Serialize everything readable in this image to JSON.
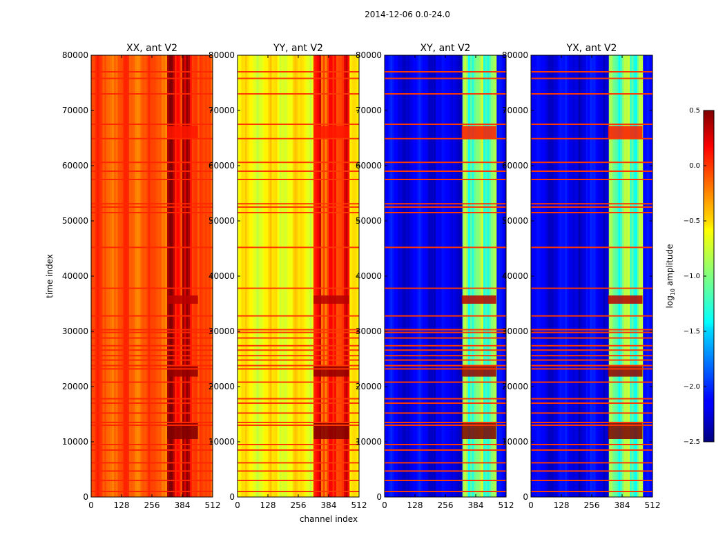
{
  "figure": {
    "suptitle": "2014-12-06 0.0-24.0",
    "xlabel": "channel index",
    "ylabel": "time index"
  },
  "chart_data": {
    "type": "heatmap",
    "x": {
      "label": "channel index",
      "range": [
        0,
        512
      ],
      "ticks": [
        0,
        128,
        256,
        384,
        512
      ],
      "tick_labels": [
        "0",
        "128",
        "256",
        "384",
        "512"
      ]
    },
    "y": {
      "label": "time index",
      "range": [
        0,
        80000
      ],
      "ticks": [
        0,
        10000,
        20000,
        30000,
        40000,
        50000,
        60000,
        70000,
        80000
      ],
      "tick_labels": [
        "0",
        "10000",
        "20000",
        "30000",
        "40000",
        "50000",
        "60000",
        "70000",
        "80000"
      ]
    },
    "panels": [
      {
        "title": "XX, ant V2",
        "base_level": -0.1,
        "hot_level": 0.4,
        "flag_level": 0.05,
        "hot_span": [
          320,
          450
        ]
      },
      {
        "title": "YY, ant V2",
        "base_level": -0.6,
        "hot_level": 0.2,
        "flag_level": 0.0,
        "hot_span": [
          320,
          470
        ]
      },
      {
        "title": "XY, ant V2",
        "base_level": -2.2,
        "hot_level": -0.9,
        "flag_level": 0.0,
        "hot_span": [
          325,
          470
        ]
      },
      {
        "title": "YX, ant V2",
        "base_level": -2.2,
        "hot_level": -0.9,
        "flag_level": 0.0,
        "hot_span": [
          325,
          470
        ]
      }
    ],
    "colorbar": {
      "label": "log10 amplitude",
      "label_main": "log",
      "label_sub": "10",
      "label_rest": " amplitude",
      "range": [
        -2.5,
        0.5
      ],
      "ticks": [
        0.5,
        0.0,
        -0.5,
        -1.0,
        -1.5,
        -2.0,
        -2.5
      ],
      "tick_labels": [
        "0.5",
        "0.0",
        "−0.5",
        "−1.0",
        "−1.5",
        "−2.0",
        "−2.5"
      ],
      "colormap": "jet"
    },
    "flagged_time_rows": [
      1000,
      3000,
      4700,
      6200,
      8500,
      9500,
      13000,
      13500,
      15200,
      17000,
      17800,
      20800,
      23200,
      23800,
      24800,
      25600,
      26600,
      27400,
      28800,
      29800,
      30300,
      32800,
      37800,
      45200,
      51500,
      52500,
      53100,
      57500,
      59000,
      60600,
      64900,
      67500,
      73000,
      75800,
      77000
    ],
    "bright_blocks": [
      {
        "t_start": 10500,
        "t_end": 13400,
        "level": 0.5
      },
      {
        "t_start": 21800,
        "t_end": 23700,
        "level": 0.45
      },
      {
        "t_start": 35000,
        "t_end": 36500,
        "level": 0.35
      },
      {
        "t_start": 64800,
        "t_end": 67200,
        "level": 0.1
      }
    ]
  }
}
